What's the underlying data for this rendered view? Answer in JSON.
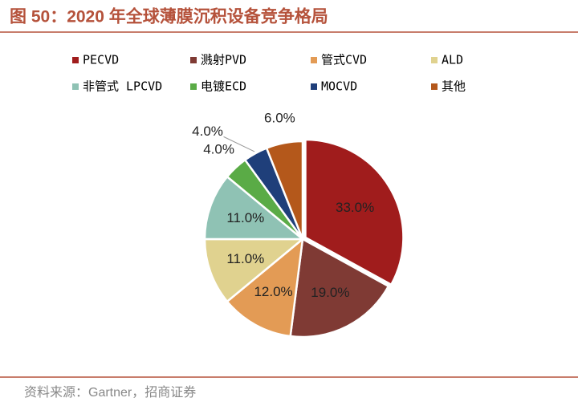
{
  "chart_data": {
    "type": "pie",
    "title": "图 50：2020 年全球薄膜沉积设备竞争格局",
    "source": "资料来源：Gartner，招商证券",
    "categories": [
      "PECVD",
      "溅射PVD",
      "管式CVD",
      "ALD",
      "非管式 LPCVD",
      "电镀ECD",
      "MOCVD",
      "其他"
    ],
    "values": [
      33,
      19,
      12,
      11,
      11,
      4,
      4,
      6
    ],
    "value_labels": [
      "33.0%",
      "19.0%",
      "12.0%",
      "11.0%",
      "11.0%",
      "4.0%",
      "4.0%",
      "6.0%"
    ],
    "colors": [
      "#a01c1c",
      "#7f3a34",
      "#e39b55",
      "#e0d28f",
      "#8fc2b4",
      "#5aab46",
      "#1f3f7a",
      "#b4581b"
    ]
  }
}
